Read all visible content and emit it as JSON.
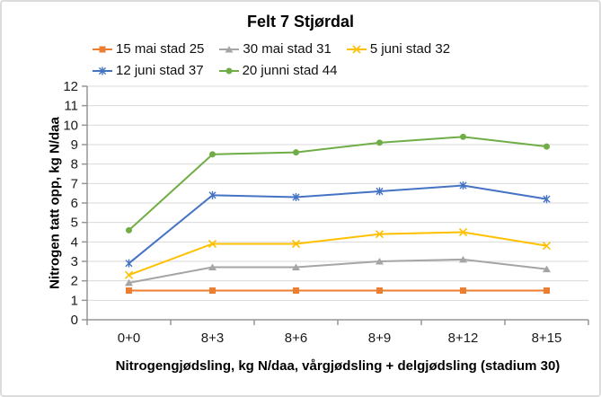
{
  "chart": {
    "background": "#FFFFFF",
    "border_color": "#DCDCDC"
  },
  "chart_data": {
    "type": "line",
    "title": "Felt 7 Stjørdal",
    "xlabel": "Nitrogengjødsling, kg N/daa, vårgjødsling + delgjødsling (stadium 30)",
    "ylabel": "Nitrogen tatt opp, kg N/daa",
    "categories": [
      "0+0",
      "8+3",
      "8+6",
      "8+9",
      "8+12",
      "8+15"
    ],
    "ylim": [
      0,
      12
    ],
    "yticks": [
      0,
      1,
      2,
      3,
      4,
      5,
      6,
      7,
      8,
      9,
      10,
      11,
      12
    ],
    "grid": true,
    "legend_position": "top",
    "legend_rows": [
      [
        0,
        1,
        2
      ],
      [
        3,
        4
      ]
    ],
    "grid_color": "#D9D9D9",
    "axis_color": "#969696",
    "text_color": "#1A1A1A",
    "series": [
      {
        "name": "15 mai stad 25",
        "color": "#ED7D31",
        "marker": "square",
        "values": [
          1.5,
          1.5,
          1.5,
          1.5,
          1.5,
          1.5
        ]
      },
      {
        "name": "30 mai stad 31",
        "color": "#A5A5A5",
        "marker": "triangle",
        "values": [
          1.9,
          2.7,
          2.7,
          3.0,
          3.1,
          2.6
        ]
      },
      {
        "name": "5 juni stad 32",
        "color": "#FFC000",
        "marker": "x",
        "values": [
          2.3,
          3.9,
          3.9,
          4.4,
          4.5,
          3.8
        ]
      },
      {
        "name": "12 juni stad 37",
        "color": "#4472C4",
        "marker": "asterisk",
        "values": [
          2.9,
          6.4,
          6.3,
          6.6,
          6.9,
          6.2
        ]
      },
      {
        "name": "20 junni stad 44",
        "color": "#70AD47",
        "marker": "circle",
        "values": [
          4.6,
          8.5,
          8.6,
          9.1,
          9.4,
          8.9
        ]
      }
    ]
  }
}
